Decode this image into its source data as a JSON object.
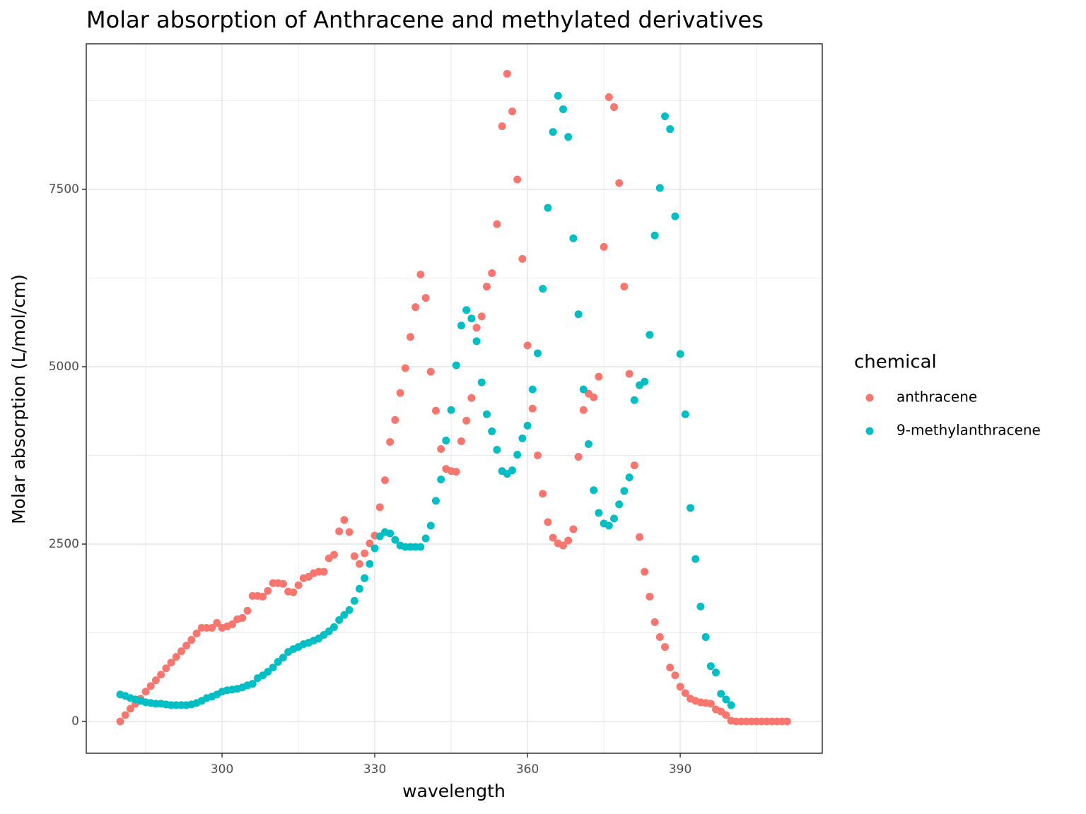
{
  "chart_data": {
    "type": "scatter",
    "title": "Molar absorption of Anthracene and methylated derivatives",
    "x_label": "wavelength",
    "y_label": "Molar absorption (L/mol/cm)",
    "legend_title": "chemical",
    "legend_position": "right",
    "grid": true,
    "xlim": [
      273.33,
      417.9
    ],
    "ylim": [
      -448,
      9552
    ],
    "xticks": [
      300,
      330,
      360,
      390
    ],
    "yticks": [
      0,
      2500,
      5000,
      7500
    ],
    "series": [
      {
        "name": "anthracene",
        "color": "#F8766D",
        "x": [
          280,
          281,
          282,
          283,
          284,
          285,
          286,
          287,
          288,
          289,
          290,
          291,
          292,
          293,
          294,
          295,
          296,
          297,
          298,
          299,
          300,
          301,
          302,
          303,
          304,
          305,
          306,
          307,
          308,
          309,
          310,
          311,
          312,
          313,
          314,
          315,
          316,
          317,
          318,
          319,
          320,
          321,
          322,
          323,
          324,
          325,
          326,
          327,
          328,
          329,
          330,
          331,
          332,
          333,
          334,
          335,
          336,
          337,
          338,
          339,
          340,
          341,
          342,
          343,
          344,
          345,
          346,
          347,
          348,
          349,
          350,
          351,
          352,
          353,
          354,
          355,
          356,
          357,
          358,
          359,
          360,
          361,
          362,
          363,
          364,
          365,
          366,
          367,
          368,
          369,
          370,
          371,
          372,
          373,
          374,
          375,
          376,
          377,
          378,
          379,
          380,
          381,
          382,
          383,
          384,
          385,
          386,
          387,
          388,
          389,
          390,
          391,
          392,
          393,
          394,
          395,
          396,
          397,
          398,
          399,
          400,
          401,
          402,
          403,
          404,
          405,
          406,
          407,
          408,
          409,
          410,
          411
        ],
        "values": [
          0,
          90,
          180,
          250,
          320,
          420,
          500,
          580,
          660,
          750,
          830,
          910,
          990,
          1070,
          1150,
          1240,
          1320,
          1320,
          1320,
          1390,
          1320,
          1340,
          1370,
          1440,
          1460,
          1560,
          1770,
          1770,
          1760,
          1840,
          1950,
          1950,
          1940,
          1830,
          1820,
          1920,
          2020,
          2040,
          2090,
          2110,
          2110,
          2300,
          2350,
          2680,
          2840,
          2670,
          2330,
          2220,
          2370,
          2510,
          2620,
          3020,
          3400,
          3940,
          4250,
          4630,
          4980,
          5420,
          5840,
          6300,
          5970,
          4930,
          4380,
          3840,
          3560,
          3530,
          3520,
          3950,
          4240,
          4560,
          5550,
          5710,
          6130,
          6320,
          7010,
          8390,
          9130,
          8600,
          7640,
          6520,
          5300,
          4410,
          3750,
          3210,
          2810,
          2590,
          2510,
          2480,
          2550,
          2710,
          3730,
          4390,
          4620,
          4570,
          4860,
          6690,
          8800,
          8660,
          7590,
          6130,
          4900,
          3610,
          2600,
          2110,
          1760,
          1400,
          1190,
          1050,
          760,
          650,
          490,
          400,
          320,
          290,
          270,
          260,
          250,
          170,
          140,
          90,
          10,
          0,
          0,
          0,
          0,
          0,
          0,
          0,
          0,
          0,
          0,
          0
        ]
      },
      {
        "name": "9-methylanthracene",
        "color": "#00BFC4",
        "x": [
          280,
          281,
          282,
          283,
          284,
          285,
          286,
          287,
          288,
          289,
          290,
          291,
          292,
          293,
          294,
          295,
          296,
          297,
          298,
          299,
          300,
          301,
          302,
          303,
          304,
          305,
          306,
          307,
          308,
          309,
          310,
          311,
          312,
          313,
          314,
          315,
          316,
          317,
          318,
          319,
          320,
          321,
          322,
          323,
          324,
          325,
          326,
          327,
          328,
          329,
          330,
          331,
          332,
          333,
          334,
          335,
          336,
          337,
          338,
          339,
          340,
          341,
          342,
          343,
          344,
          345,
          346,
          347,
          348,
          349,
          350,
          351,
          352,
          353,
          354,
          355,
          356,
          357,
          358,
          359,
          360,
          361,
          362,
          363,
          364,
          365,
          366,
          367,
          368,
          369,
          370,
          371,
          372,
          373,
          374,
          375,
          376,
          377,
          378,
          379,
          380,
          381,
          382,
          383,
          384,
          385,
          386,
          387,
          388,
          389,
          390,
          391,
          392,
          393,
          394,
          395,
          396,
          397,
          398,
          399,
          400
        ],
        "values": [
          380,
          360,
          330,
          310,
          290,
          270,
          260,
          250,
          250,
          240,
          230,
          230,
          230,
          230,
          240,
          260,
          290,
          330,
          350,
          380,
          420,
          440,
          450,
          460,
          480,
          510,
          530,
          610,
          650,
          700,
          760,
          840,
          900,
          980,
          1020,
          1050,
          1090,
          1110,
          1140,
          1170,
          1220,
          1270,
          1330,
          1430,
          1500,
          1570,
          1700,
          1870,
          2020,
          2220,
          2440,
          2610,
          2670,
          2650,
          2560,
          2480,
          2460,
          2460,
          2460,
          2460,
          2580,
          2760,
          3110,
          3410,
          3960,
          4390,
          5020,
          5580,
          5800,
          5680,
          5360,
          4780,
          4330,
          4090,
          3830,
          3530,
          3490,
          3540,
          3760,
          3990,
          4170,
          4680,
          5190,
          6100,
          7240,
          8310,
          8820,
          8630,
          8240,
          6810,
          5740,
          4680,
          3910,
          3260,
          2940,
          2790,
          2760,
          2860,
          3060,
          3250,
          3440,
          4530,
          4740,
          4790,
          5450,
          6850,
          7520,
          8530,
          8350,
          7120,
          5180,
          4330,
          3010,
          2290,
          1620,
          1190,
          780,
          690,
          390,
          310,
          230
        ]
      }
    ]
  }
}
